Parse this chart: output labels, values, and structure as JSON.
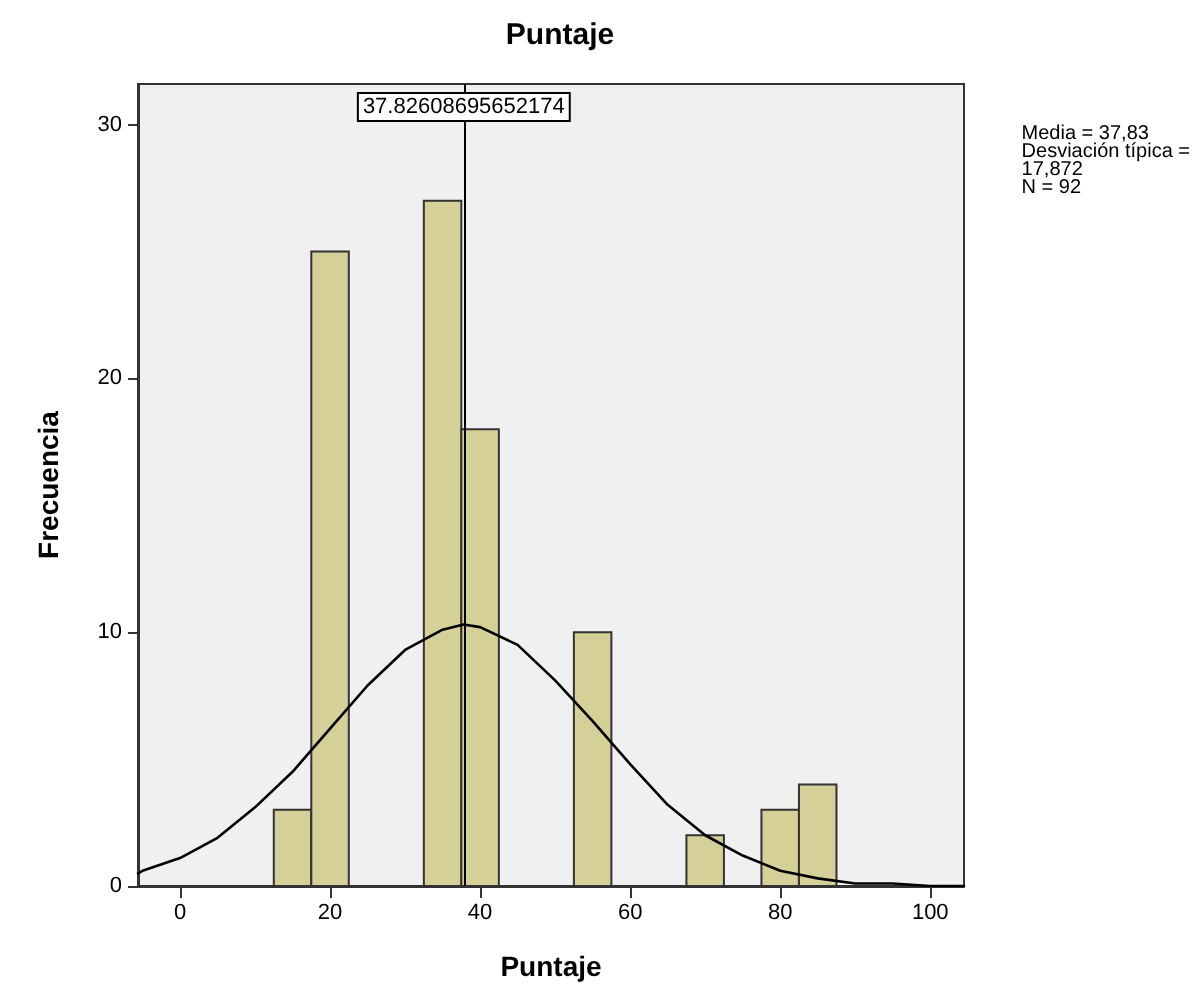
{
  "chart_data": {
    "type": "histogram",
    "title": "Puntaje",
    "xlabel": "Puntaje",
    "ylabel": "Frecuencia",
    "annotations": [
      "Media = 37,83\nDesviación típica =\n17,872\nN = 92"
    ],
    "series": [
      {
        "color": "#d5cf98",
        "bins": [
          12.5,
          17.5,
          22.5,
          27.5,
          32.5,
          37.5,
          42.5,
          47.5,
          52.5,
          57.5,
          62.5,
          67.5,
          72.5,
          77.5,
          82.5,
          87.5
        ],
        "values": [
          3,
          25,
          0,
          0,
          27,
          18,
          0,
          0,
          10,
          0,
          0,
          2,
          0,
          3,
          4
        ]
      },
      {
        "type": "line",
        "color": "#000000",
        "x": [
          -5.6,
          -5,
          0,
          5,
          10,
          15,
          20,
          25,
          30,
          35,
          37.8,
          40,
          45,
          50,
          55,
          60,
          65,
          70,
          75,
          80,
          85,
          90,
          95,
          100,
          104.5
        ],
        "values": [
          0.5,
          0.6,
          1.1,
          1.9,
          3.1,
          4.5,
          6.2,
          7.9,
          9.3,
          10.1,
          10.3,
          10.2,
          9.5,
          8.1,
          6.5,
          4.8,
          3.2,
          2.0,
          1.2,
          0.6,
          0.3,
          0.1,
          0.1,
          0.0,
          0.0
        ]
      }
    ],
    "xlim": [
      -5.6,
      104.5
    ],
    "xticks": [
      0,
      20,
      40,
      60,
      80,
      100
    ],
    "ylim": [
      0,
      31.6
    ],
    "yticks": [
      0,
      10,
      20,
      30
    ],
    "ref_lines": [
      {
        "axis": "x",
        "value": 37.82608695652174,
        "label": "37.82608695652174",
        "color": "#000000"
      }
    ],
    "grid": false,
    "marker": "none",
    "line_style": "solid"
  }
}
